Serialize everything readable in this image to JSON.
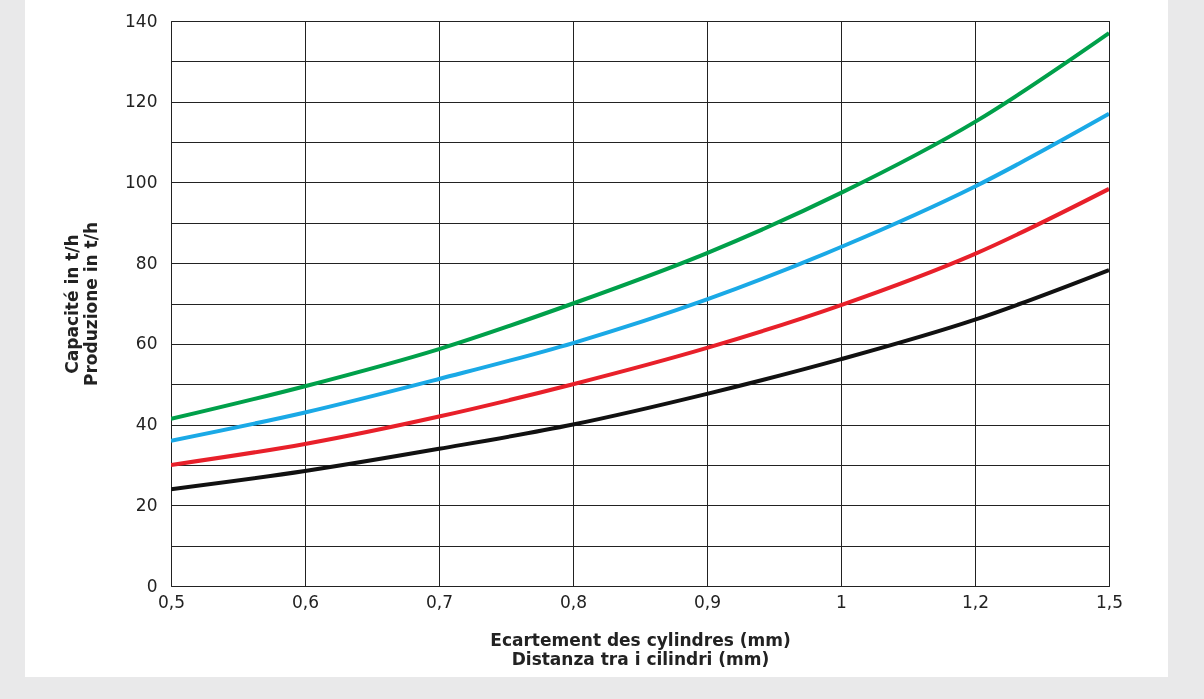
{
  "chart_data": {
    "type": "line",
    "xlabel": "Ecartement des cylindres (mm)\nDistanza tra i cilindri (mm)",
    "ylabel": "Capacité in t/h\nProduzione in t/h",
    "categories": [
      "0,5",
      "0,6",
      "0,7",
      "0,8",
      "0,9",
      "1",
      "1,2",
      "1,5"
    ],
    "ylim": [
      0,
      140
    ],
    "yticks": [
      0,
      {
        "value": 10,
        "label": null
      },
      20,
      {
        "value": 30,
        "label": null
      },
      40,
      {
        "value": 50,
        "label": null
      },
      60,
      {
        "value": 70,
        "label": null
      },
      80,
      {
        "value": 90,
        "label": null
      },
      100,
      {
        "value": 110,
        "label": null
      },
      120,
      {
        "value": 130,
        "label": null
      },
      140
    ],
    "grid": true,
    "line_style": "solid",
    "series": [
      {
        "color": "#00a04a",
        "values": [
          41.4,
          49.5,
          58.7,
          70,
          82.5,
          97.4,
          115,
          137
        ]
      },
      {
        "color": "#1aa9e6",
        "values": [
          36,
          43,
          51.3,
          60.2,
          71,
          84,
          99,
          117
        ]
      },
      {
        "color": "#e8202a",
        "values": [
          30,
          35.2,
          42,
          50,
          59,
          69.6,
          82.3,
          98.4
        ]
      },
      {
        "color": "#111111",
        "values": [
          24,
          28.5,
          34,
          40,
          47.6,
          56.2,
          66,
          78.3
        ]
      }
    ]
  }
}
